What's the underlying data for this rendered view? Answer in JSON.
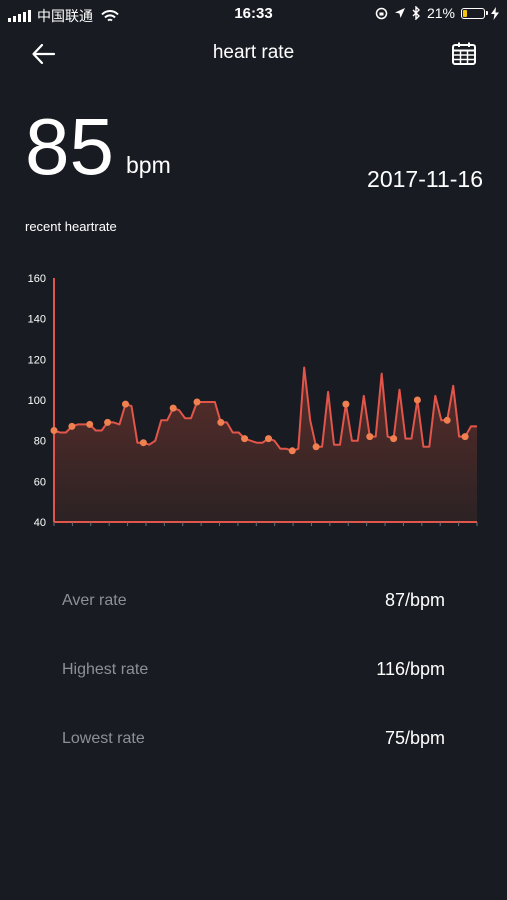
{
  "status_bar": {
    "carrier": "中国联通",
    "time": "16:33",
    "battery_text": "21%",
    "battery_level": 0.21
  },
  "nav": {
    "title": "heart rate",
    "back_icon": "arrow-left-icon",
    "calendar_icon": "calendar-icon"
  },
  "current": {
    "value": "85",
    "unit": "bpm",
    "date": "2017-11-16"
  },
  "recent_label": "recent heartrate",
  "chart_data": {
    "type": "area",
    "title": "",
    "xlabel": "",
    "ylabel": "",
    "ylim": [
      40,
      160
    ],
    "yticks": [
      "160",
      "140",
      "120",
      "100",
      "80",
      "60",
      "40"
    ],
    "grid": false,
    "line_color": "#e2554a",
    "point_color": "#f08050",
    "values": [
      85,
      84,
      84,
      87,
      88,
      88,
      88,
      85,
      85,
      89,
      89,
      88,
      98,
      97,
      79,
      79,
      78,
      80,
      90,
      90,
      96,
      95,
      91,
      91,
      99,
      99,
      99,
      99,
      89,
      89,
      84,
      84,
      81,
      80,
      79,
      79,
      81,
      80,
      76,
      76,
      75,
      76,
      116,
      90,
      77,
      77,
      104,
      78,
      78,
      98,
      80,
      80,
      102,
      82,
      82,
      113,
      82,
      81,
      105,
      81,
      81,
      100,
      77,
      77,
      102,
      90,
      90,
      107,
      82,
      82,
      87,
      87
    ],
    "markers": [
      0,
      3,
      6,
      9,
      12,
      15,
      20,
      24,
      28,
      32,
      36,
      40,
      44,
      49,
      53,
      57,
      61,
      66,
      69
    ]
  },
  "stats": [
    {
      "label": "Aver rate",
      "value": "87/bpm"
    },
    {
      "label": "Highest rate",
      "value": "116/bpm"
    },
    {
      "label": "Lowest rate",
      "value": "75/bpm"
    }
  ]
}
